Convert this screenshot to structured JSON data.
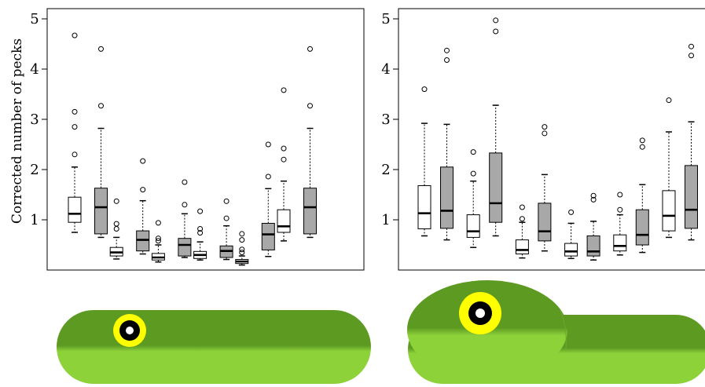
{
  "ylabel": "Corrected number of pecks",
  "colors": {
    "white_box": "#ffffff",
    "gray_box": "#a8a8a8",
    "frog_top": "#5c9a22",
    "frog_bottom": "#8ed23a",
    "eye_ring": "#ffff00",
    "eye_pupil": "#000000"
  },
  "illustrations": [
    {
      "name": "flat-stimulus",
      "shape": "flat elongated green body with yellow eye"
    },
    {
      "name": "bumped-stimulus",
      "shape": "green body with raised head and yellow eye"
    }
  ],
  "chart_data": [
    {
      "type": "box",
      "title": "",
      "xlabel": "",
      "ylabel": "Corrected number of pecks",
      "ylim": [
        0,
        5.2
      ],
      "yticks": [
        1,
        2,
        3,
        4,
        5
      ],
      "grid": false,
      "x_tick_labels_shown": false,
      "series_fill": [
        "white",
        "gray"
      ],
      "groups": [
        {
          "boxes": [
            {
              "fill": "white",
              "whisker_low": 0.75,
              "q1": 0.95,
              "median": 1.12,
              "q3": 1.45,
              "whisker_high": 2.05,
              "outliers": [
                2.3,
                2.85,
                3.15,
                4.67
              ]
            },
            {
              "fill": "gray",
              "whisker_low": 0.65,
              "q1": 0.72,
              "median": 1.25,
              "q3": 1.63,
              "whisker_high": 2.82,
              "outliers": [
                3.27,
                4.4
              ]
            }
          ]
        },
        {
          "boxes": [
            {
              "fill": "white",
              "whisker_low": 0.22,
              "q1": 0.28,
              "median": 0.35,
              "q3": 0.45,
              "whisker_high": 0.65,
              "outliers": [
                0.82,
                0.92,
                1.37
              ]
            },
            {
              "fill": "gray",
              "whisker_low": 0.32,
              "q1": 0.38,
              "median": 0.6,
              "q3": 0.78,
              "whisker_high": 1.38,
              "outliers": [
                1.6,
                2.17
              ]
            }
          ]
        },
        {
          "boxes": [
            {
              "fill": "white",
              "whisker_low": 0.16,
              "q1": 0.2,
              "median": 0.25,
              "q3": 0.33,
              "whisker_high": 0.5,
              "outliers": [
                0.58,
                0.63,
                0.94
              ]
            },
            {
              "fill": "gray",
              "whisker_low": 0.25,
              "q1": 0.28,
              "median": 0.5,
              "q3": 0.63,
              "whisker_high": 1.12,
              "outliers": [
                1.3,
                1.75
              ]
            }
          ]
        },
        {
          "boxes": [
            {
              "fill": "white",
              "whisker_low": 0.2,
              "q1": 0.23,
              "median": 0.3,
              "q3": 0.37,
              "whisker_high": 0.56,
              "outliers": [
                0.74,
                0.82,
                1.17
              ]
            },
            {
              "fill": "gray",
              "whisker_low": 0.21,
              "q1": 0.25,
              "median": 0.38,
              "q3": 0.48,
              "whisker_high": 0.88,
              "outliers": [
                1.03,
                1.37
              ]
            }
          ]
        },
        {
          "boxes": [
            {
              "fill": "white",
              "whisker_low": 0.1,
              "q1": 0.13,
              "median": 0.17,
              "q3": 0.21,
              "whisker_high": 0.28,
              "outliers": [
                0.35,
                0.41,
                0.6,
                0.72
              ]
            },
            {
              "fill": "gray",
              "whisker_low": 0.27,
              "q1": 0.4,
              "median": 0.71,
              "q3": 0.93,
              "whisker_high": 1.62,
              "outliers": [
                1.86,
                2.5
              ]
            }
          ]
        },
        {
          "boxes": [
            {
              "fill": "white",
              "whisker_low": 0.58,
              "q1": 0.75,
              "median": 0.87,
              "q3": 1.2,
              "whisker_high": 1.77,
              "outliers": [
                2.2,
                2.42,
                3.58
              ]
            },
            {
              "fill": "gray",
              "whisker_low": 0.65,
              "q1": 0.72,
              "median": 1.25,
              "q3": 1.63,
              "whisker_high": 2.82,
              "outliers": [
                3.27,
                4.4
              ]
            }
          ]
        }
      ]
    },
    {
      "type": "box",
      "title": "",
      "xlabel": "",
      "ylabel": "",
      "ylim": [
        0,
        5.2
      ],
      "yticks": [
        1,
        2,
        3,
        4,
        5
      ],
      "grid": false,
      "x_tick_labels_shown": false,
      "series_fill": [
        "white",
        "gray"
      ],
      "groups": [
        {
          "boxes": [
            {
              "fill": "white",
              "whisker_low": 0.68,
              "q1": 0.82,
              "median": 1.13,
              "q3": 1.68,
              "whisker_high": 2.92,
              "outliers": [
                3.6
              ]
            },
            {
              "fill": "gray",
              "whisker_low": 0.6,
              "q1": 0.83,
              "median": 1.18,
              "q3": 2.05,
              "whisker_high": 2.9,
              "outliers": [
                4.18,
                4.37
              ]
            }
          ]
        },
        {
          "boxes": [
            {
              "fill": "white",
              "whisker_low": 0.45,
              "q1": 0.65,
              "median": 0.77,
              "q3": 1.1,
              "whisker_high": 1.77,
              "outliers": [
                1.92,
                2.35
              ]
            },
            {
              "fill": "gray",
              "whisker_low": 0.68,
              "q1": 0.95,
              "median": 1.33,
              "q3": 2.33,
              "whisker_high": 3.28,
              "outliers": [
                4.75,
                4.97
              ]
            }
          ]
        },
        {
          "boxes": [
            {
              "fill": "white",
              "whisker_low": 0.24,
              "q1": 0.32,
              "median": 0.4,
              "q3": 0.6,
              "whisker_high": 0.95,
              "outliers": [
                1.02,
                1.25
              ]
            },
            {
              "fill": "gray",
              "whisker_low": 0.38,
              "q1": 0.58,
              "median": 0.77,
              "q3": 1.33,
              "whisker_high": 1.9,
              "outliers": [
                2.72,
                2.85
              ]
            }
          ]
        },
        {
          "boxes": [
            {
              "fill": "white",
              "whisker_low": 0.23,
              "q1": 0.28,
              "median": 0.37,
              "q3": 0.53,
              "whisker_high": 0.93,
              "outliers": [
                1.15
              ]
            },
            {
              "fill": "gray",
              "whisker_low": 0.2,
              "q1": 0.28,
              "median": 0.37,
              "q3": 0.68,
              "whisker_high": 0.97,
              "outliers": [
                1.4,
                1.48
              ]
            }
          ]
        },
        {
          "boxes": [
            {
              "fill": "white",
              "whisker_low": 0.3,
              "q1": 0.38,
              "median": 0.48,
              "q3": 0.7,
              "whisker_high": 1.1,
              "outliers": [
                1.2,
                1.5
              ]
            },
            {
              "fill": "gray",
              "whisker_low": 0.35,
              "q1": 0.5,
              "median": 0.7,
              "q3": 1.2,
              "whisker_high": 1.7,
              "outliers": [
                2.45,
                2.58
              ]
            }
          ]
        },
        {
          "boxes": [
            {
              "fill": "white",
              "whisker_low": 0.65,
              "q1": 0.78,
              "median": 1.08,
              "q3": 1.58,
              "whisker_high": 2.75,
              "outliers": [
                3.38
              ]
            },
            {
              "fill": "gray",
              "whisker_low": 0.6,
              "q1": 0.83,
              "median": 1.2,
              "q3": 2.08,
              "whisker_high": 2.95,
              "outliers": [
                4.27,
                4.45
              ]
            }
          ]
        }
      ]
    }
  ]
}
